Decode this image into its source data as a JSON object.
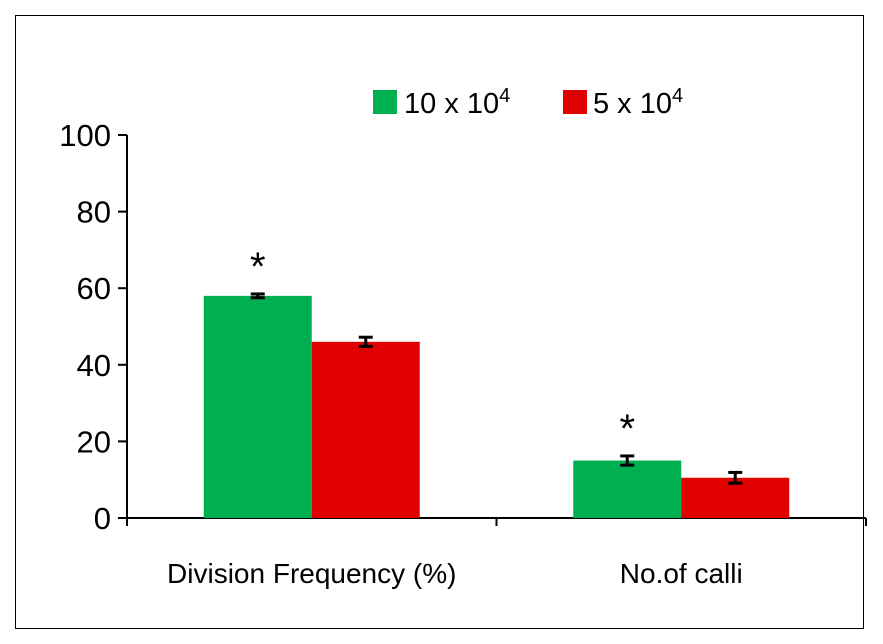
{
  "chart_data": {
    "type": "bar",
    "categories": [
      "Division Frequency (%)",
      "No.of calli"
    ],
    "series": [
      {
        "name": "10 x 10",
        "name_sup": "4",
        "color": "#00b050",
        "values": [
          58,
          15
        ],
        "errors": [
          0.5,
          1.2
        ]
      },
      {
        "name": "5 x 10",
        "name_sup": "4",
        "color": "#e00000",
        "values": [
          46,
          10.5
        ],
        "errors": [
          1.2,
          1.4
        ]
      }
    ],
    "annotations": [
      {
        "text": "*",
        "category": 0,
        "series": 0
      },
      {
        "text": "*",
        "category": 1,
        "series": 0
      }
    ],
    "yticks": [
      0,
      20,
      40,
      60,
      80,
      100
    ],
    "ylim": [
      0,
      100
    ],
    "title": "",
    "xlabel": "",
    "ylabel": "",
    "legend": "top-center",
    "grid": false
  }
}
